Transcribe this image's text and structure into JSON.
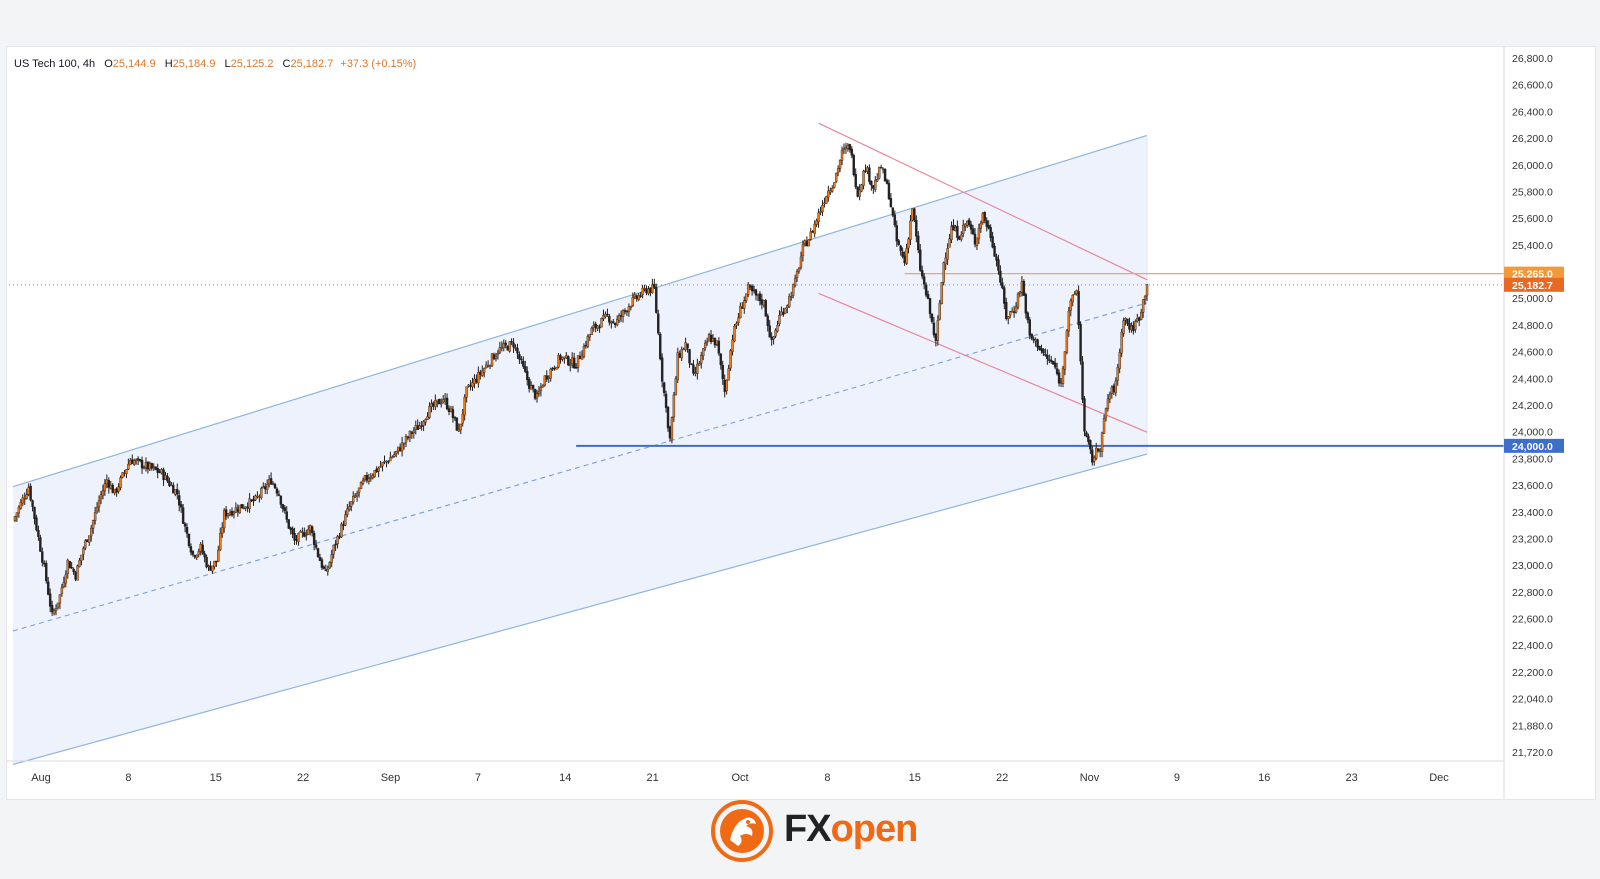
{
  "header": {
    "symbol": "US Tech 100",
    "timeframe": "4h",
    "open_label": "O",
    "open": "25,144.9",
    "high_label": "H",
    "high": "25,184.9",
    "low_label": "L",
    "low": "25,125.2",
    "close_label": "C",
    "close": "25,182.7",
    "change": "+37.3 (+0.15%)"
  },
  "price_badges": {
    "resistance": "25,265.0",
    "last": "25,182.7",
    "support": "24,000.0"
  },
  "logo": {
    "text_fx": "FX",
    "text_open": "open"
  },
  "colors": {
    "up_candle": "#f07a1a",
    "down_candle": "#222222",
    "channel_line": "#8fb4e0",
    "channel_fill": "#eef2fd",
    "red_channel": "#e8869a",
    "support_line": "#3d6fc7",
    "resistance_line": "#f5a55a",
    "last_price_line": "#e06848",
    "brand_orange": "#f06a16"
  },
  "chart_data": {
    "type": "candlestick",
    "title": "US Tech 100, 4h",
    "y_axis": {
      "min": 21700,
      "max": 26900,
      "tick_labels": [
        "26,800.0",
        "26,600.0",
        "26,400.0",
        "26,200.0",
        "26,000.0",
        "25,800.0",
        "25,600.0",
        "25,400.0",
        "25,200.0",
        "25,000.0",
        "24,800.0",
        "24,600.0",
        "24,400.0",
        "24,200.0",
        "24,000.0",
        "23,800.0",
        "23,600.0",
        "23,400.0",
        "23,200.0",
        "23,000.0",
        "22,800.0",
        "22,600.0",
        "22,400.0",
        "22,200.0",
        "22,040.0",
        "21,880.0",
        "21,720.0"
      ]
    },
    "x_axis": {
      "tick_labels": [
        "Aug",
        "8",
        "15",
        "22",
        "Sep",
        "7",
        "14",
        "21",
        "Oct",
        "8",
        "15",
        "22",
        "Nov",
        "9",
        "16",
        "23",
        "Dec"
      ]
    },
    "close_path": [
      [
        0,
        23450
      ],
      [
        2,
        23700
      ],
      [
        4,
        23100
      ],
      [
        5,
        22750
      ],
      [
        6,
        22900
      ],
      [
        7,
        23150
      ],
      [
        8,
        23050
      ],
      [
        9,
        23250
      ],
      [
        10,
        23400
      ],
      [
        11,
        23600
      ],
      [
        12,
        23750
      ],
      [
        13,
        23650
      ],
      [
        15,
        23900
      ],
      [
        17,
        23850
      ],
      [
        19,
        23800
      ],
      [
        21,
        23650
      ],
      [
        22,
        23400
      ],
      [
        23,
        23200
      ],
      [
        24,
        23250
      ],
      [
        25,
        23100
      ],
      [
        26,
        23150
      ],
      [
        27,
        23500
      ],
      [
        29,
        23550
      ],
      [
        31,
        23600
      ],
      [
        33,
        23750
      ],
      [
        34,
        23650
      ],
      [
        35,
        23450
      ],
      [
        36,
        23300
      ],
      [
        38,
        23400
      ],
      [
        39,
        23200
      ],
      [
        40,
        23050
      ],
      [
        41,
        23250
      ],
      [
        42,
        23400
      ],
      [
        43,
        23550
      ],
      [
        45,
        23750
      ],
      [
        47,
        23850
      ],
      [
        49,
        23950
      ],
      [
        51,
        24100
      ],
      [
        52,
        24150
      ],
      [
        53,
        24250
      ],
      [
        55,
        24350
      ],
      [
        56,
        24250
      ],
      [
        57,
        24100
      ],
      [
        58,
        24400
      ],
      [
        60,
        24550
      ],
      [
        62,
        24700
      ],
      [
        64,
        24750
      ],
      [
        65,
        24600
      ],
      [
        66,
        24450
      ],
      [
        67,
        24350
      ],
      [
        68,
        24500
      ],
      [
        70,
        24650
      ],
      [
        72,
        24600
      ],
      [
        74,
        24850
      ],
      [
        76,
        24950
      ],
      [
        77,
        24900
      ],
      [
        79,
        25050
      ],
      [
        80,
        25100
      ],
      [
        81,
        25150
      ],
      [
        82,
        25150
      ],
      [
        83,
        24500
      ],
      [
        84,
        24050
      ],
      [
        85,
        24650
      ],
      [
        86,
        24750
      ],
      [
        87,
        24500
      ],
      [
        88,
        24650
      ],
      [
        89,
        24800
      ],
      [
        90,
        24750
      ],
      [
        91,
        24400
      ],
      [
        92,
        24800
      ],
      [
        93,
        25000
      ],
      [
        94,
        25150
      ],
      [
        95,
        25100
      ],
      [
        96,
        25050
      ],
      [
        97,
        24750
      ],
      [
        98,
        24950
      ],
      [
        99,
        25050
      ],
      [
        100,
        25200
      ],
      [
        101,
        25450
      ],
      [
        102,
        25550
      ],
      [
        103,
        25700
      ],
      [
        104,
        25850
      ],
      [
        105,
        25950
      ],
      [
        106,
        26150
      ],
      [
        107,
        26200
      ],
      [
        108,
        25850
      ],
      [
        109,
        26050
      ],
      [
        110,
        25900
      ],
      [
        111,
        26050
      ],
      [
        112,
        25850
      ],
      [
        113,
        25500
      ],
      [
        114,
        25350
      ],
      [
        115,
        25750
      ],
      [
        116,
        25300
      ],
      [
        117,
        25050
      ],
      [
        118,
        24750
      ],
      [
        119,
        25350
      ],
      [
        120,
        25600
      ],
      [
        121,
        25550
      ],
      [
        122,
        25650
      ],
      [
        123,
        25500
      ],
      [
        124,
        25700
      ],
      [
        125,
        25550
      ],
      [
        126,
        25300
      ],
      [
        127,
        24950
      ],
      [
        128,
        25000
      ],
      [
        129,
        25200
      ],
      [
        130,
        24800
      ],
      [
        131,
        24750
      ],
      [
        132,
        24650
      ],
      [
        133,
        24600
      ],
      [
        134,
        24450
      ],
      [
        135,
        25000
      ],
      [
        136,
        25150
      ],
      [
        137,
        24100
      ],
      [
        138,
        23900
      ],
      [
        139,
        24000
      ],
      [
        140,
        24350
      ],
      [
        141,
        24450
      ],
      [
        142,
        24950
      ],
      [
        143,
        24850
      ],
      [
        144,
        24950
      ],
      [
        145,
        25182.7
      ]
    ],
    "last_close": 25182.7,
    "horizontal_levels": [
      {
        "name": "resistance",
        "value": 25265.0
      },
      {
        "name": "last",
        "value": 25182.7
      },
      {
        "name": "support",
        "value": 24000.0
      }
    ],
    "ascending_channel": {
      "upper": [
        [
          0,
          23700
        ],
        [
          145,
          26280
        ]
      ],
      "middle": [
        [
          0,
          22640
        ],
        [
          145,
          25050
        ]
      ],
      "lower": [
        [
          0,
          21660
        ],
        [
          145,
          23940
        ]
      ]
    },
    "descending_channel": {
      "upper": [
        [
          103,
          26370
        ],
        [
          145,
          25220
        ]
      ],
      "lower": [
        [
          103,
          25120
        ],
        [
          145,
          24100
        ]
      ]
    },
    "grid": false,
    "legend": "none"
  }
}
